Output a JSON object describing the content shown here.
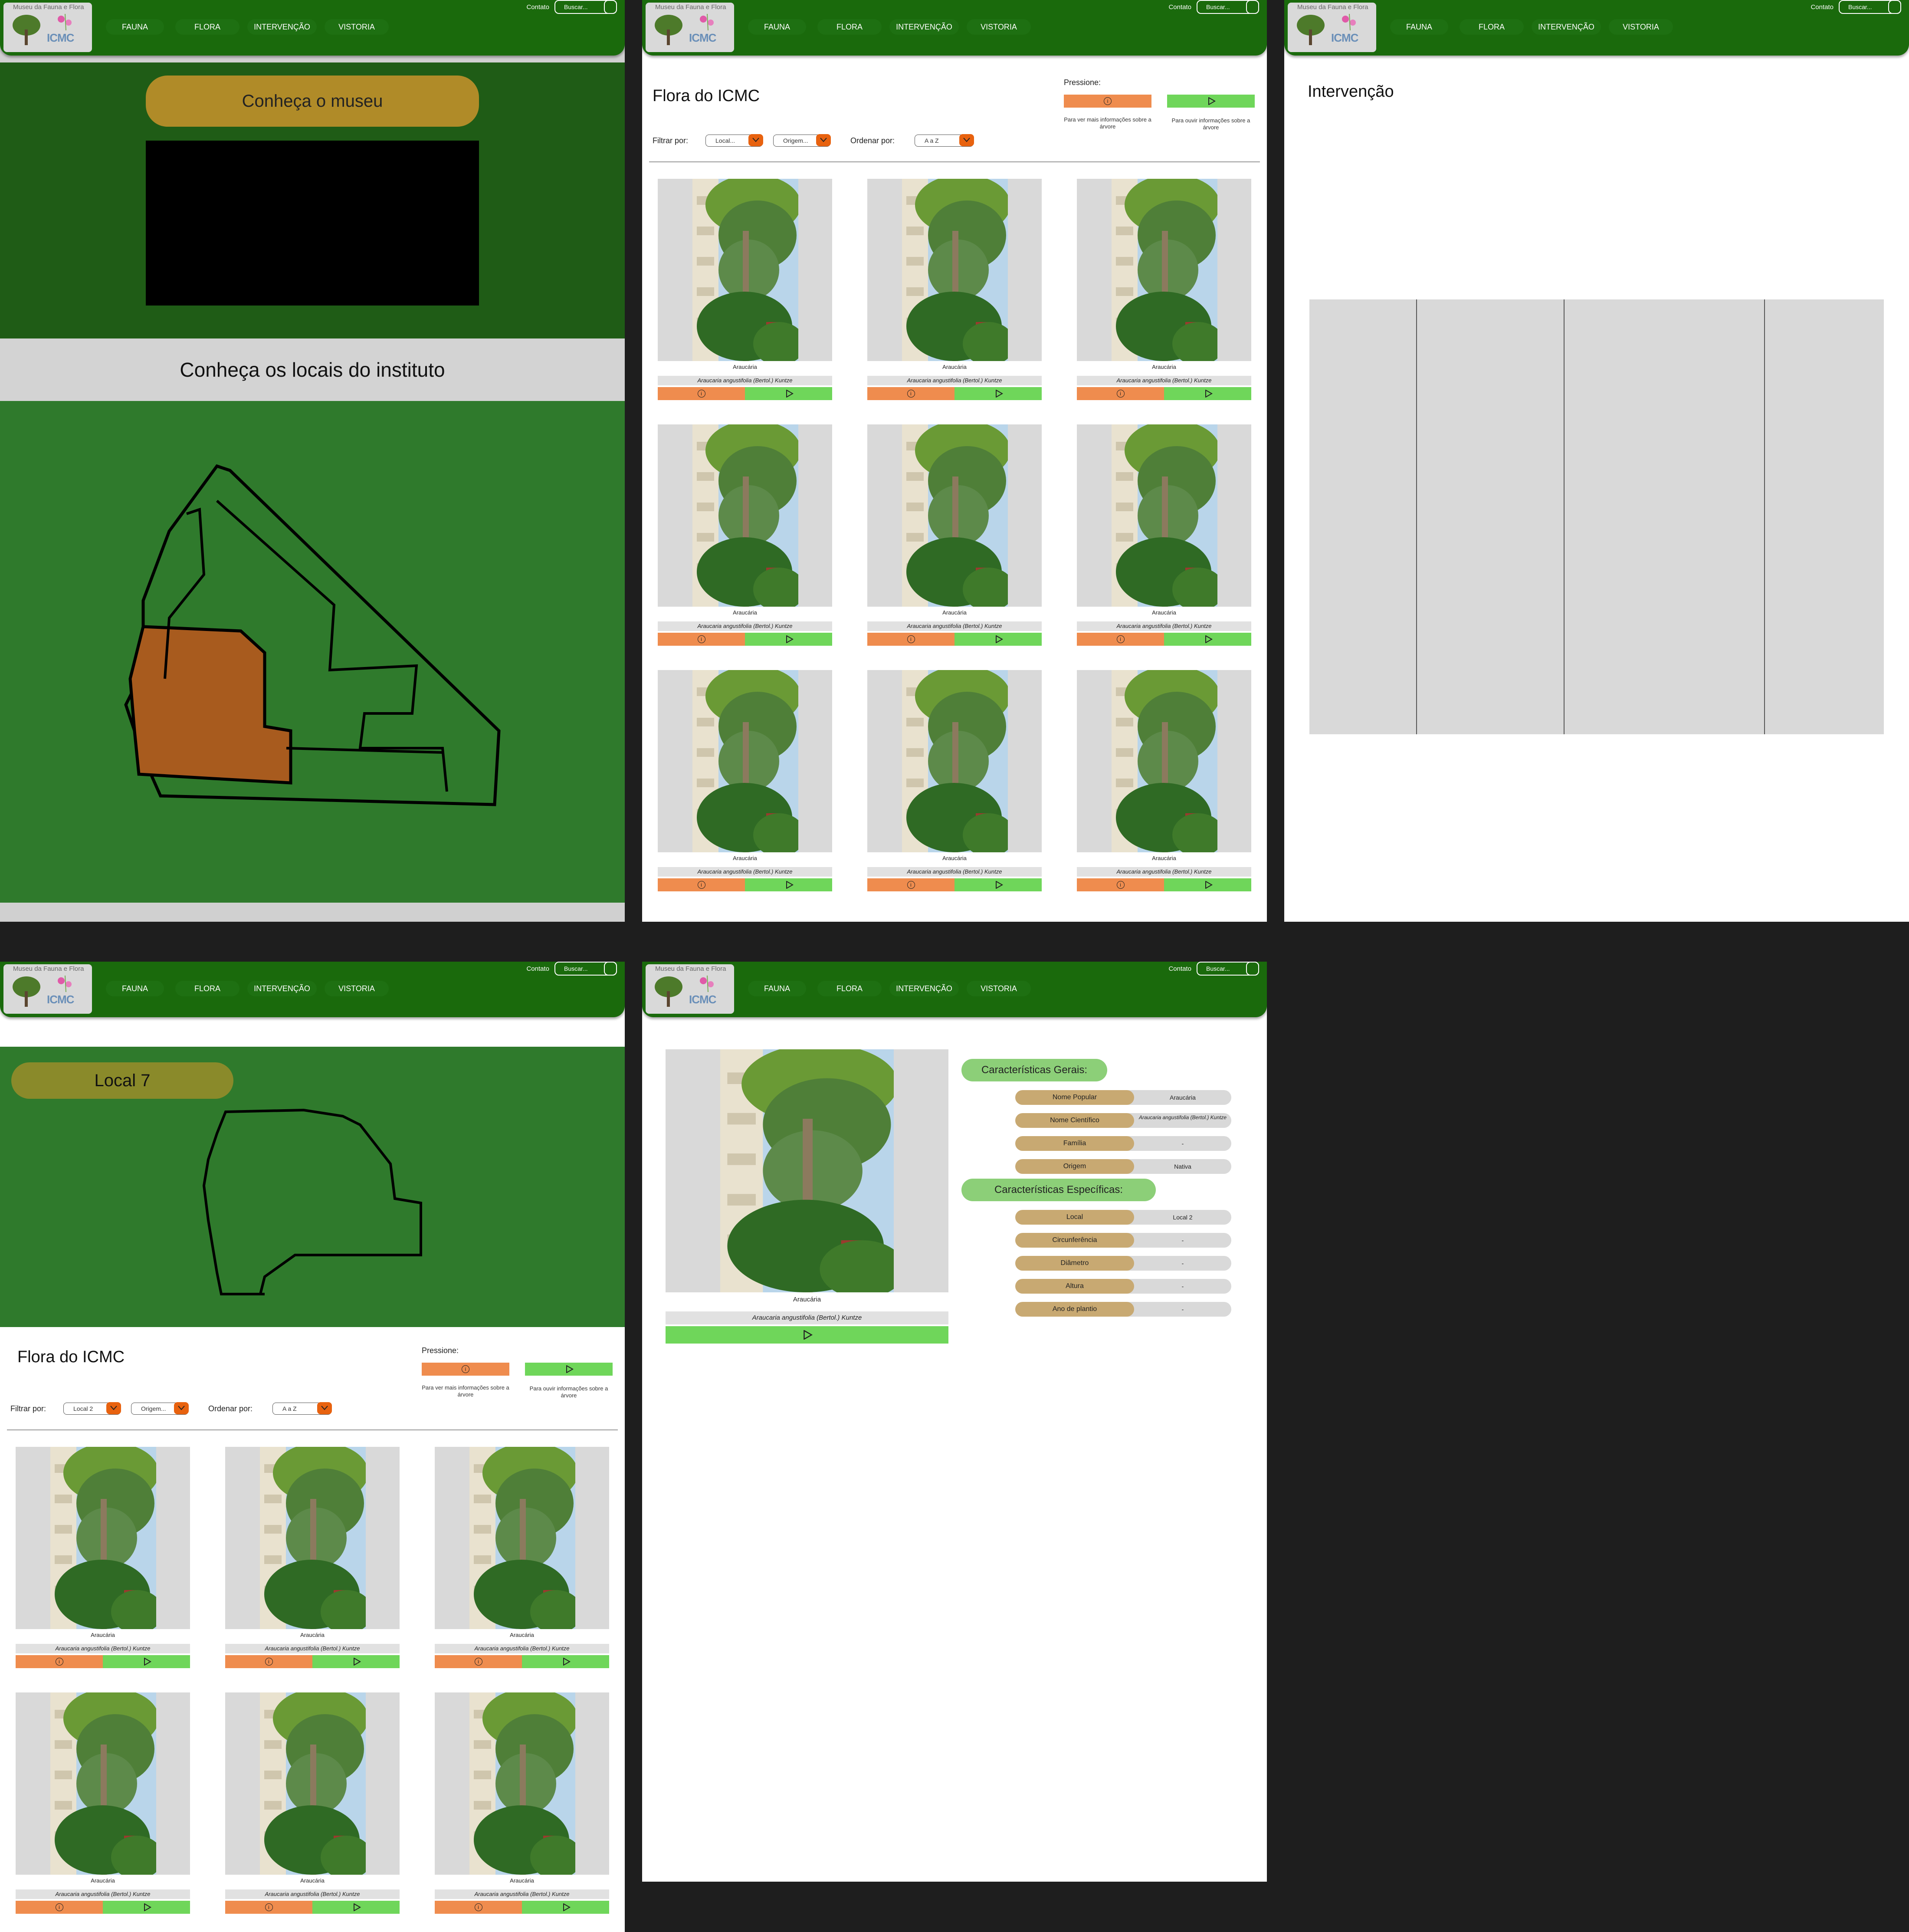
{
  "header": {
    "logo_title": "Museu da Fauna e Flora",
    "logo_text": "ICMC",
    "nav": [
      "FAUNA",
      "FLORA",
      "INTERVENÇÃO",
      "VISTORIA"
    ],
    "contato": "Contato",
    "search_placeholder": "Buscar..."
  },
  "museum": {
    "museum_button": "Conheça o museu",
    "locais_title": "Conheça os locais do instituto"
  },
  "flora": {
    "title": "Flora do ICMC",
    "pressione": "Pressione:",
    "info_caption": "Para ver mais informações sobre a árvore",
    "audio_caption": "Para ouvir informações sobre a árvore",
    "filter_label": "Filtrar por:",
    "filter_local": "Local...",
    "filter_origem": "Origem...",
    "order_label": "Ordenar por:",
    "order_value": "A a Z",
    "card_name": "Araucária",
    "card_sci": "Araucaria angustifolia (Bertol.) Kuntze"
  },
  "intervencao": {
    "title": "Intervenção"
  },
  "local": {
    "title": "Local 7",
    "filter_local": "Local 2",
    "filter_origem": "Origem..."
  },
  "detail": {
    "name": "Araucária",
    "sci": "Araucaria angustifolia (Bertol.) Kuntze",
    "general_title": "Características Gerais:",
    "general": [
      {
        "k": "Nome Popular",
        "v": "Araucária"
      },
      {
        "k": "Nome Científico",
        "v": "Araucaria angustifolia (Bertol.) Kuntze"
      },
      {
        "k": "Família",
        "v": "-"
      },
      {
        "k": "Origem",
        "v": "Nativa"
      }
    ],
    "specific_title": "Características Específicas:",
    "specific": [
      {
        "k": "Local",
        "v": "Local 2"
      },
      {
        "k": "Circunferência",
        "v": "-"
      },
      {
        "k": "Diâmetro",
        "v": "-"
      },
      {
        "k": "Altura",
        "v": "-"
      },
      {
        "k": "Ano de plantio",
        "v": "-"
      }
    ]
  },
  "colors": {
    "header_green": "#1a6a0c",
    "map_green": "#2f7a2c",
    "highlight_orange": "#a85b1e",
    "info_orange": "#ef8c4e",
    "play_green": "#6fd65a",
    "select_orange": "#e8620f"
  }
}
